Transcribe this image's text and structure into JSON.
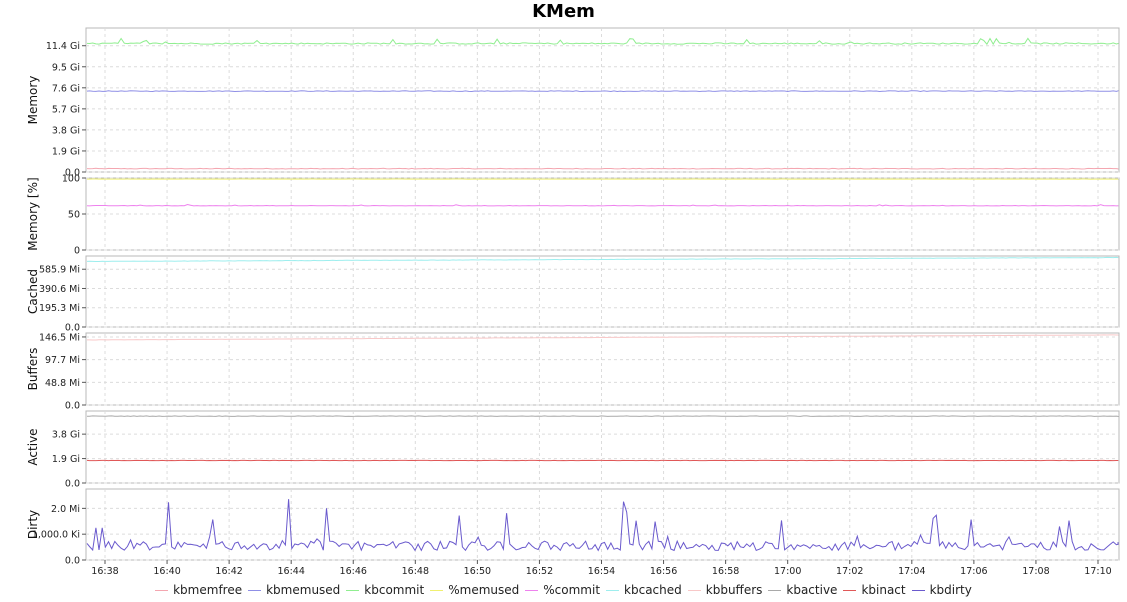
{
  "title": "KMem",
  "x_ticks": [
    "16:38",
    "16:40",
    "16:42",
    "16:44",
    "16:46",
    "16:48",
    "16:50",
    "16:52",
    "16:54",
    "16:56",
    "16:58",
    "17:00",
    "17:02",
    "17:04",
    "17:06",
    "17:08",
    "17:10"
  ],
  "legend": [
    {
      "name": "kbmemfree",
      "color": "#f4a6b0"
    },
    {
      "name": "kbmemused",
      "color": "#8f8fe6"
    },
    {
      "name": "kbcommit",
      "color": "#90ee90"
    },
    {
      "name": "%memused",
      "color": "#f0f070"
    },
    {
      "name": "%commit",
      "color": "#ee82ee"
    },
    {
      "name": "kbcached",
      "color": "#9eeeee"
    },
    {
      "name": "kbbuffers",
      "color": "#f8c8c8"
    },
    {
      "name": "kbactive",
      "color": "#a9a9a9"
    },
    {
      "name": "kbinact",
      "color": "#e05858"
    },
    {
      "name": "kbdirty",
      "color": "#6a5acd"
    }
  ],
  "chart_data": [
    {
      "type": "line",
      "ylabel": "Memory",
      "yticks": [
        "0.0",
        "1.9 Gi",
        "3.8 Gi",
        "5.7 Gi",
        "7.6 Gi",
        "9.5 Gi",
        "11.4 Gi"
      ],
      "ylim": [
        0,
        13.0
      ],
      "ytick_values": [
        0,
        1.9,
        3.8,
        5.7,
        7.6,
        9.5,
        11.4
      ],
      "series": [
        {
          "name": "kbmemfree",
          "color": "#f4a6b0",
          "level": 0.3,
          "noise": 0.03,
          "spikes": 0
        },
        {
          "name": "kbmemused",
          "color": "#8f8fe6",
          "level": 7.3,
          "noise": 0.03,
          "spikes": 0
        },
        {
          "name": "kbcommit",
          "color": "#90ee90",
          "level": 11.6,
          "noise": 0.06,
          "spikes": 0.5
        }
      ]
    },
    {
      "type": "line",
      "ylabel": "Memory [%]",
      "yticks": [
        "0",
        "50",
        "100"
      ],
      "ylim": [
        0,
        100
      ],
      "ytick_values": [
        0,
        50,
        100
      ],
      "series": [
        {
          "name": "%memused",
          "color": "#f0f070",
          "level": 98.5,
          "noise": 0.1,
          "spikes": 0
        },
        {
          "name": "%commit",
          "color": "#ee82ee",
          "level": 61.5,
          "noise": 0.3,
          "spikes": 1.5
        }
      ]
    },
    {
      "type": "line",
      "ylabel": "Cached",
      "yticks": [
        "0.0",
        "195.3 Mi",
        "390.6 Mi",
        "585.9 Mi"
      ],
      "ylim": [
        0,
        720
      ],
      "ytick_values": [
        0,
        195.3,
        390.6,
        585.9
      ],
      "series": [
        {
          "name": "kbcached",
          "color": "#9eeeee",
          "start": 665,
          "end": 705,
          "noise": 1.5,
          "spikes": 0
        }
      ]
    },
    {
      "type": "line",
      "ylabel": "Buffers",
      "yticks": [
        "0.0",
        "48.8 Mi",
        "97.7 Mi",
        "146.5 Mi"
      ],
      "ylim": [
        0,
        155
      ],
      "ytick_values": [
        0,
        48.8,
        97.7,
        146.5
      ],
      "series": [
        {
          "name": "kbbuffers",
          "color": "#f8c8c8",
          "start": 140,
          "end": 151,
          "noise": 0.2,
          "spikes": 0
        }
      ]
    },
    {
      "type": "line",
      "ylabel": "Active",
      "yticks": [
        "0.0",
        "1.9 Gi",
        "3.8 Gi"
      ],
      "ylim": [
        0,
        5.6
      ],
      "ytick_values": [
        0,
        1.9,
        3.8
      ],
      "series": [
        {
          "name": "kbactive",
          "color": "#a9a9a9",
          "level": 5.2,
          "noise": 0.02,
          "spikes": 0
        },
        {
          "name": "kbinact",
          "color": "#e05858",
          "level": 1.75,
          "noise": 0.01,
          "spikes": 0
        }
      ]
    },
    {
      "type": "line",
      "ylabel": "Dirty",
      "yticks": [
        "0.0",
        "1,000.0 Ki",
        "2.0 Mi"
      ],
      "ylim": [
        0,
        2750
      ],
      "ytick_values": [
        0,
        1000,
        2000
      ],
      "series": [
        {
          "name": "kbdirty",
          "color": "#6a5acd",
          "level": 550,
          "noise": 180,
          "spikes": 1700
        }
      ]
    }
  ]
}
